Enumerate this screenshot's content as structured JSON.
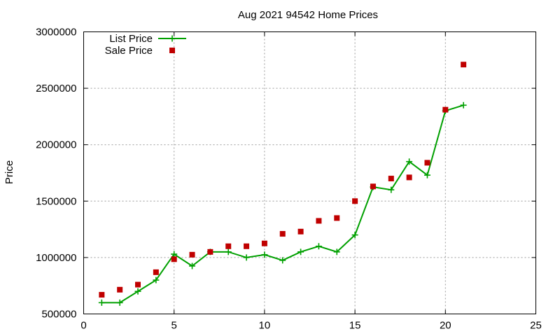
{
  "chart_data": {
    "type": "line",
    "title": "Aug 2021 94542 Home Prices",
    "xlabel": "",
    "ylabel": "Price",
    "xlim": [
      0,
      25
    ],
    "ylim": [
      500000,
      3000000
    ],
    "xticks": [
      0,
      5,
      10,
      15,
      20,
      25
    ],
    "yticks": [
      500000,
      1000000,
      1500000,
      2000000,
      2500000,
      3000000
    ],
    "xtick_labels": [
      "0",
      "5",
      "10",
      "15",
      "20",
      "25"
    ],
    "ytick_labels": [
      "500000",
      "1000000",
      "1500000",
      "2000000",
      "2500000",
      "3000000"
    ],
    "grid": true,
    "legend_position": "top-left",
    "series": [
      {
        "name": "List Price",
        "style": "line-plus",
        "color": "#00a000",
        "x": [
          1,
          2,
          3,
          4,
          5,
          6,
          7,
          8,
          9,
          10,
          11,
          12,
          13,
          14,
          15,
          16,
          17,
          18,
          19,
          20,
          21
        ],
        "y": [
          600000,
          600000,
          700000,
          800000,
          1030000,
          925000,
          1050000,
          1050000,
          1000000,
          1025000,
          975000,
          1050000,
          1100000,
          1050000,
          1200000,
          1625000,
          1600000,
          1850000,
          1730000,
          2300000,
          2350000
        ]
      },
      {
        "name": "Sale Price",
        "style": "square",
        "color": "#c00000",
        "x": [
          1,
          2,
          3,
          4,
          5,
          6,
          7,
          8,
          9,
          10,
          11,
          12,
          13,
          14,
          15,
          16,
          17,
          18,
          19,
          20,
          21
        ],
        "y": [
          670000,
          715000,
          760000,
          870000,
          985000,
          1025000,
          1050000,
          1100000,
          1100000,
          1125000,
          1210000,
          1230000,
          1325000,
          1350000,
          1500000,
          1630000,
          1700000,
          1710000,
          1840000,
          2310000,
          2710000
        ]
      }
    ]
  }
}
